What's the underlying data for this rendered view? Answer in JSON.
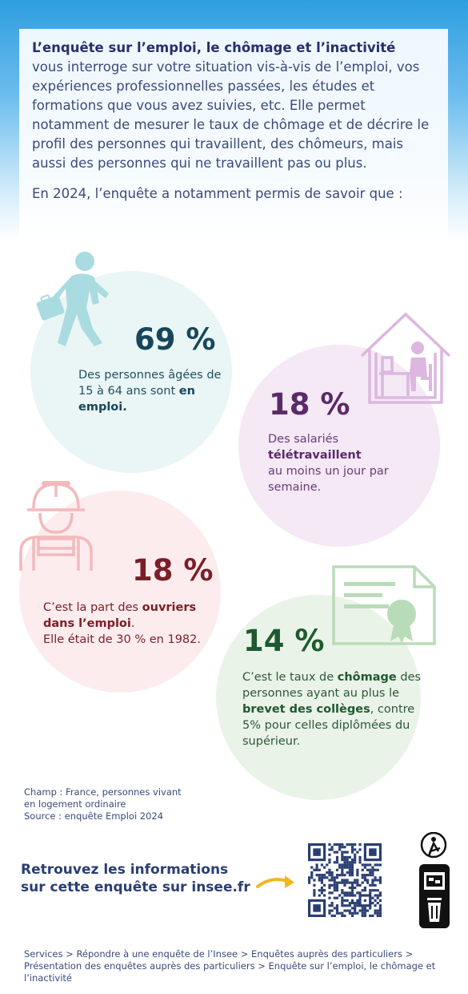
{
  "intro": {
    "title": "L’enquête sur l’emploi, le chômage et l’inactivité",
    "text": "vous interroge sur votre situation vis-à-vis de l’emploi, vos expériences professionnelles passées, les études et formations que vous avez suivies, etc. Elle permet notamment de mesurer le taux de chômage et de décrire le profil des personnes qui travaillent, des chômeurs, mais aussi des personnes qui ne travaillent pas ou plus.",
    "lead": "En 2024, l’enquête a notamment permis de savoir que :"
  },
  "stats": [
    {
      "value": "69 %",
      "text_before": "Des personnes âgées de 15 à 64 ans sont ",
      "text_bold": "en emploi.",
      "color": "#17465a",
      "icon": "walking-worker-icon"
    },
    {
      "value": "18 %",
      "line1": "Des salariés",
      "text_bold": "télétravaillent",
      "line3": "au moins un jour par semaine.",
      "color": "#5a2a6a",
      "icon": "house-desk-icon"
    },
    {
      "value": "18 %",
      "text_before": "C’est la part des ",
      "text_bold": "ouvriers dans l’emploi",
      "text_after": ".",
      "line2": "Elle était de 30 % en 1982.",
      "color": "#7a1e28",
      "icon": "hardhat-worker-icon"
    },
    {
      "value": "14 %",
      "text_before": "C’est le taux de ",
      "text_bold1": "chômage",
      "text_mid": " des personnes ayant au plus le ",
      "text_bold2": "brevet des collèges",
      "text_after": ", contre 5% pour celles diplômées du supérieur.",
      "color": "#1e5a30",
      "icon": "diploma-icon"
    }
  ],
  "source": {
    "line1": "Champ : France, personnes vivant",
    "line2": "en logement ordinaire",
    "line3": "Source : enquête Emploi 2024"
  },
  "cta": {
    "line1": "Retrouvez les informations",
    "line2": "sur cette enquête sur insee.fr"
  },
  "breadcrumb": "Services > Répondre à une enquête de l’Insee > Enquêtes auprès des particuliers > Présentation des enquêtes auprès des particuliers > Enquête sur l’emploi, le chômage et l’inactivité",
  "colors": {
    "accent_blue": "#2f9ee0",
    "arrow": "#f3b61f",
    "navy": "#2a3e73"
  }
}
